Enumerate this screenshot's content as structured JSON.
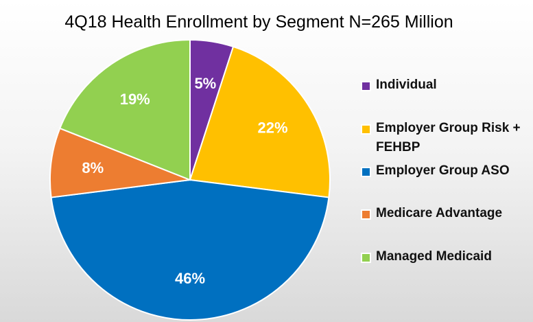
{
  "chart_data": {
    "type": "pie",
    "title": "4Q18 Health Enrollment by Segment N=265 Million",
    "legend_position": "right",
    "start": "top, clockwise",
    "slices": [
      {
        "label": "Individual",
        "value": 5,
        "data_label": "5%",
        "color": "#7030A0"
      },
      {
        "label": "Employer Group Risk + FEHBP",
        "value": 22,
        "data_label": "22%",
        "color": "#FFC000"
      },
      {
        "label": "Employer Group ASO",
        "value": 46,
        "data_label": "46%",
        "color": "#0070C0"
      },
      {
        "label": "Medicare Advantage",
        "value": 8,
        "data_label": "8%",
        "color": "#ED7D31"
      },
      {
        "label": "Managed Medicaid",
        "value": 19,
        "data_label": "19%",
        "color": "#92D050"
      }
    ]
  }
}
